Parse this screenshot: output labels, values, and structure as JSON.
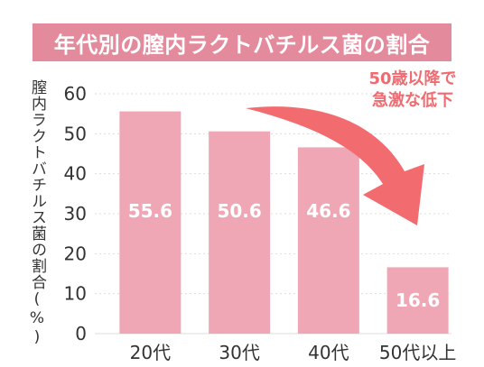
{
  "title": "年代別の膣内ラクトバチルス菌の割合",
  "annotation": {
    "line1": "50歳以降で",
    "line2": "急激な低下"
  },
  "colors": {
    "banner": "#e38a9c",
    "bar": "#f0a7b5",
    "bar_label": "#ffffff",
    "arrow": "#f26b6f",
    "grid": "#dddddd",
    "axis_text": "#333333"
  },
  "chart_data": {
    "type": "bar",
    "title": "年代別の膣内ラクトバチルス菌の割合",
    "xlabel": "",
    "ylabel": "膣内ラクトバチルス菌の割合(%)",
    "categories": [
      "20代",
      "30代",
      "40代",
      "50代以上"
    ],
    "values": [
      55.6,
      50.6,
      46.6,
      16.6
    ],
    "value_labels": [
      "55.6",
      "50.6",
      "46.6",
      "16.6"
    ],
    "ylim": [
      0,
      60
    ],
    "yticks": [
      0,
      10,
      20,
      30,
      40,
      50,
      60
    ],
    "grid": true
  }
}
